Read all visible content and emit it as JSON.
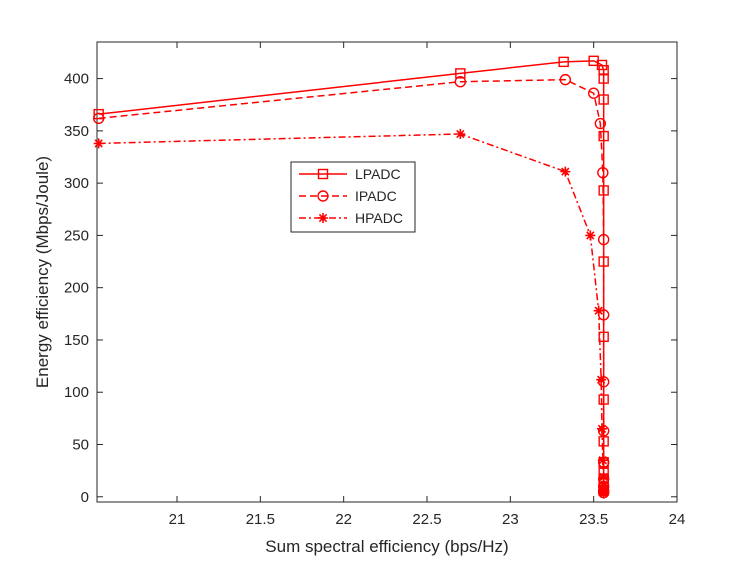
{
  "chart_data": {
    "type": "line",
    "title": "",
    "xlabel": "Sum spectral efficiency (bps/Hz)",
    "ylabel": "Energy efficiency (Mbps/Joule)",
    "xlim": [
      20.52,
      24.0
    ],
    "ylim": [
      -5,
      435
    ],
    "xticks": [
      21,
      21.5,
      22,
      22.5,
      23,
      23.5,
      24
    ],
    "xtick_labels": [
      "21",
      "21.5",
      "22",
      "22.5",
      "23",
      "23.5",
      "24"
    ],
    "yticks": [
      0,
      50,
      100,
      150,
      200,
      250,
      300,
      350,
      400
    ],
    "ytick_labels": [
      "0",
      "50",
      "100",
      "150",
      "200",
      "250",
      "300",
      "350",
      "400"
    ],
    "legend_position": "center-left",
    "series": [
      {
        "name": "LPADC",
        "color": "#ff0000",
        "dash": "solid",
        "marker": "square",
        "x": [
          20.53,
          22.7,
          23.32,
          23.5,
          23.55,
          23.56,
          23.56,
          23.56,
          23.56,
          23.56,
          23.56,
          23.56,
          23.56,
          23.56,
          23.56,
          23.56,
          23.56,
          23.56,
          23.56,
          23.56
        ],
        "y": [
          366,
          405,
          416,
          417,
          413,
          408,
          400,
          380,
          345,
          293,
          225,
          153,
          93,
          53,
          33,
          23,
          17,
          13,
          9,
          6
        ]
      },
      {
        "name": "IPADC",
        "color": "#ff0000",
        "dash": "dashed",
        "marker": "circle",
        "x": [
          20.53,
          22.7,
          23.33,
          23.5,
          23.54,
          23.555,
          23.56,
          23.56,
          23.56,
          23.56,
          23.56,
          23.56,
          23.56,
          23.56,
          23.56
        ],
        "y": [
          362,
          397,
          399,
          386,
          357,
          310,
          246,
          174,
          110,
          63,
          33,
          17,
          10,
          6,
          4
        ]
      },
      {
        "name": "HPADC",
        "color": "#ff0000",
        "dash": "dashdot",
        "marker": "asterisk",
        "x": [
          20.53,
          22.7,
          23.33,
          23.48,
          23.53,
          23.545,
          23.55,
          23.555,
          23.56,
          23.56,
          23.56,
          23.56,
          23.56
        ],
        "y": [
          338,
          347,
          311,
          250,
          178,
          112,
          65,
          35,
          19,
          11,
          7,
          5,
          3
        ]
      }
    ]
  }
}
